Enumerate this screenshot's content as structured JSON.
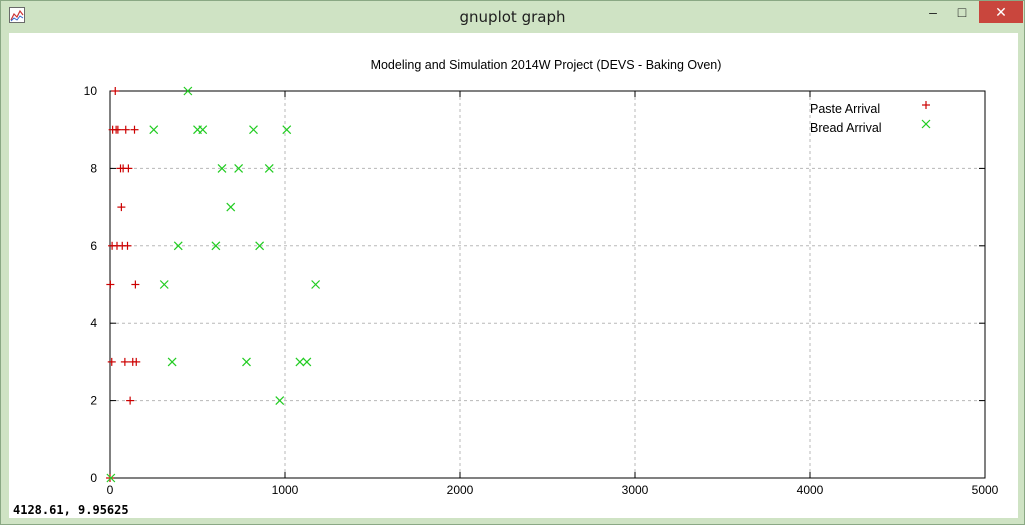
{
  "window": {
    "title": "gnuplot graph",
    "minimize_label": "–",
    "maximize_label": "□",
    "close_label": "✕",
    "icon": "gnuplot-app-icon"
  },
  "status": {
    "coords": "4128.61,  9.95625"
  },
  "colors": {
    "paste": "#cc0000",
    "bread": "#22cc22",
    "grid": "#b8b8b8",
    "close_button": "#c9463d",
    "window_frame": "#cfe3c4"
  },
  "chart_data": {
    "type": "scatter",
    "title": "Modeling and Simulation 2014W Project (DEVS - Baking Oven)",
    "xlabel": "",
    "ylabel": "",
    "xlim": [
      0,
      5000
    ],
    "ylim": [
      0,
      10
    ],
    "xticks": [
      "0",
      "1000",
      "2000",
      "3000",
      "4000",
      "5000"
    ],
    "yticks": [
      "0",
      "2",
      "4",
      "6",
      "8",
      "10"
    ],
    "grid": true,
    "legend_position": "top-right",
    "series": [
      {
        "name": "Paste Arrival",
        "marker": "plus",
        "color": "#cc0000",
        "points": [
          [
            0,
            0
          ],
          [
            2,
            5
          ],
          [
            10,
            3
          ],
          [
            12,
            6
          ],
          [
            15,
            9
          ],
          [
            30,
            10
          ],
          [
            35,
            9
          ],
          [
            40,
            6
          ],
          [
            45,
            9
          ],
          [
            60,
            8
          ],
          [
            65,
            7
          ],
          [
            70,
            6
          ],
          [
            75,
            8
          ],
          [
            85,
            3
          ],
          [
            90,
            9
          ],
          [
            100,
            6
          ],
          [
            105,
            8
          ],
          [
            115,
            2
          ],
          [
            130,
            3
          ],
          [
            140,
            9
          ],
          [
            145,
            5
          ],
          [
            150,
            3
          ]
        ]
      },
      {
        "name": "Bread Arrival",
        "marker": "cross",
        "color": "#22cc22",
        "points": [
          [
            5,
            0
          ],
          [
            250,
            9
          ],
          [
            310,
            5
          ],
          [
            355,
            3
          ],
          [
            390,
            6
          ],
          [
            445,
            10
          ],
          [
            500,
            9
          ],
          [
            530,
            9
          ],
          [
            605,
            6
          ],
          [
            640,
            8
          ],
          [
            690,
            7
          ],
          [
            735,
            8
          ],
          [
            780,
            3
          ],
          [
            820,
            9
          ],
          [
            855,
            6
          ],
          [
            910,
            8
          ],
          [
            970,
            2
          ],
          [
            1010,
            9
          ],
          [
            1085,
            3
          ],
          [
            1125,
            3
          ],
          [
            1175,
            5
          ]
        ]
      }
    ]
  }
}
